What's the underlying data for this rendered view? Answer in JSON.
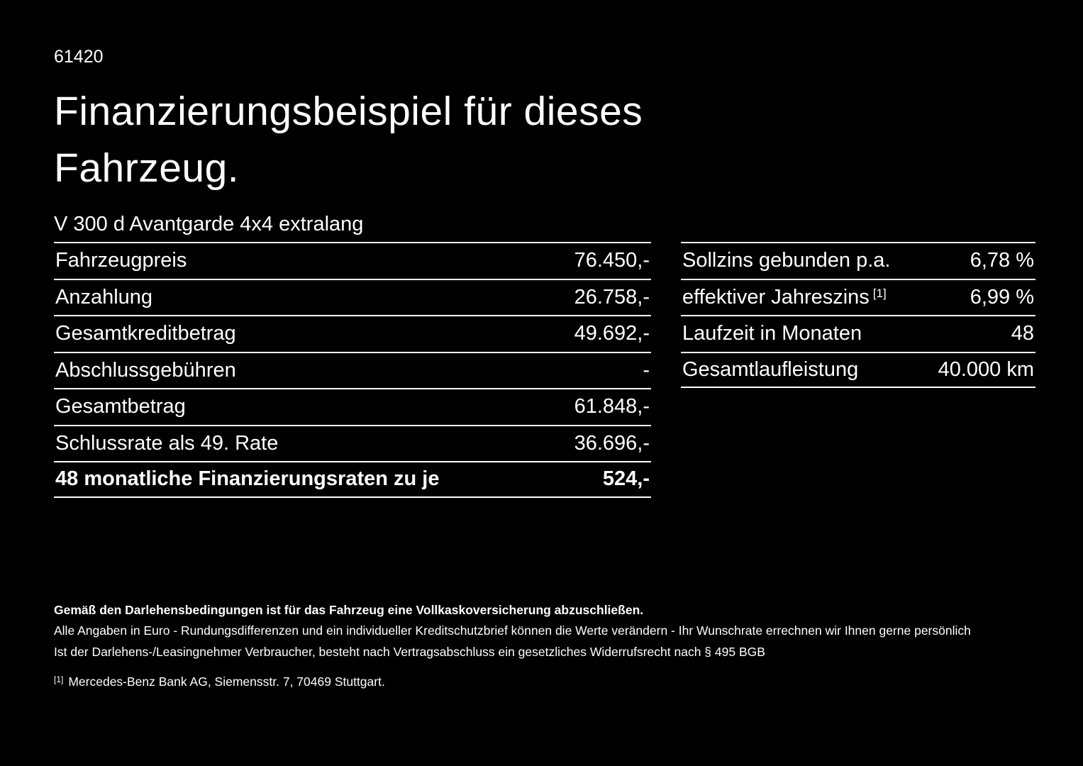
{
  "colors": {
    "background": "#000000",
    "text": "#ffffff",
    "divider": "#ffffff"
  },
  "doc_number": "61420",
  "title": {
    "line1": "Finanzierungsbeispiel für dieses",
    "line2": "Fahrzeug."
  },
  "model": "V 300 d Avantgarde 4x4 extralang",
  "left_table": {
    "rows": [
      {
        "label": "Fahrzeugpreis",
        "value": "76.450,-"
      },
      {
        "label": "Anzahlung",
        "value": "26.758,-"
      },
      {
        "label": "Gesamtkreditbetrag",
        "value": "49.692,-"
      },
      {
        "label": "Abschlussgebühren",
        "value": "-"
      },
      {
        "label": "Gesamtbetrag",
        "value": "61.848,-"
      },
      {
        "label": "Schlussrate als 49. Rate",
        "value": "36.696,-"
      },
      {
        "label": "48 monatliche Finanzierungsraten zu je",
        "value": "524,-"
      }
    ]
  },
  "right_table": {
    "rows": [
      {
        "label": "Sollzins gebunden p.a.",
        "value": "6,78 %"
      },
      {
        "label": "effektiver Jahreszins",
        "sup": "[1]",
        "value": "6,99 %"
      },
      {
        "label": "Laufzeit in Monaten",
        "value": "48"
      },
      {
        "label": "Gesamtlaufleistung",
        "value": "40.000 km"
      }
    ]
  },
  "footer": {
    "bold_note": "Gemäß den Darlehensbedingungen ist für das Fahrzeug eine Vollkaskoversicherung abzuschließen.",
    "note1": "Alle Angaben in Euro - Rundungsdifferenzen und ein individueller Kreditschutzbrief können die Werte verändern - Ihr Wunschrate errechnen wir Ihnen gerne persönlich",
    "note2": "Ist der Darlehens-/Leasingnehmer Verbraucher, besteht nach Vertragsabschluss ein gesetzliches Widerrufsrecht nach § 495 BGB",
    "footnote_marker": "[1]",
    "footnote_text": "Mercedes-Benz Bank AG, Siemensstr. 7, 70469 Stuttgart."
  }
}
